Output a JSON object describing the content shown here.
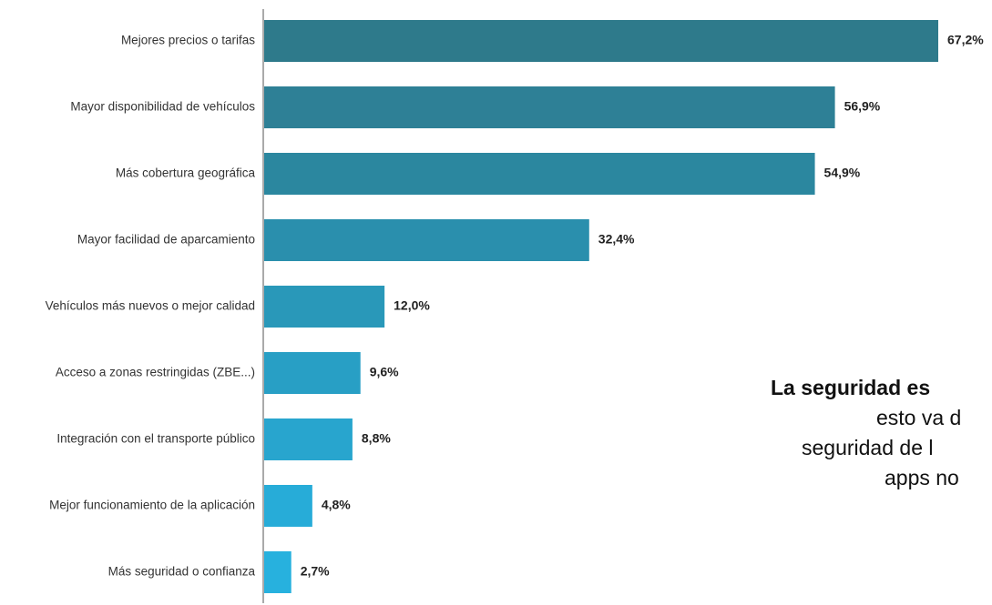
{
  "chart_data": {
    "type": "bar",
    "orientation": "horizontal",
    "categories": [
      "Mejores precios o tarifas",
      "Mayor disponibilidad de vehículos",
      "Más cobertura geográfica",
      "Mayor facilidad de aparcamiento",
      "Vehículos más nuevos o mejor calidad",
      "Acceso a zonas restringidas (ZBE...)",
      "Integración con el transporte público",
      "Mejor funcionamiento de la aplicación",
      "Más seguridad o confianza"
    ],
    "values": [
      67.2,
      56.9,
      54.9,
      32.4,
      12.0,
      9.6,
      8.8,
      4.8,
      2.7
    ],
    "value_labels": [
      "67,2%",
      "56,9%",
      "54,9%",
      "32,4%",
      "12,0%",
      "9,6%",
      "8,8%",
      "4,8%",
      "2,7%"
    ],
    "unit": "%",
    "xlim": [
      0,
      67.2
    ],
    "grid": false,
    "legend": "none",
    "colors": [
      "#2e7a8b",
      "#2e8096",
      "#2b879f",
      "#2a8fad",
      "#2998b9",
      "#289fc5",
      "#28a5ce",
      "#27acd8",
      "#27b1de"
    ]
  },
  "callout": {
    "line1": "La seguridad es",
    "line2": "esto va d",
    "line3": "seguridad de l",
    "line4": "apps no"
  }
}
